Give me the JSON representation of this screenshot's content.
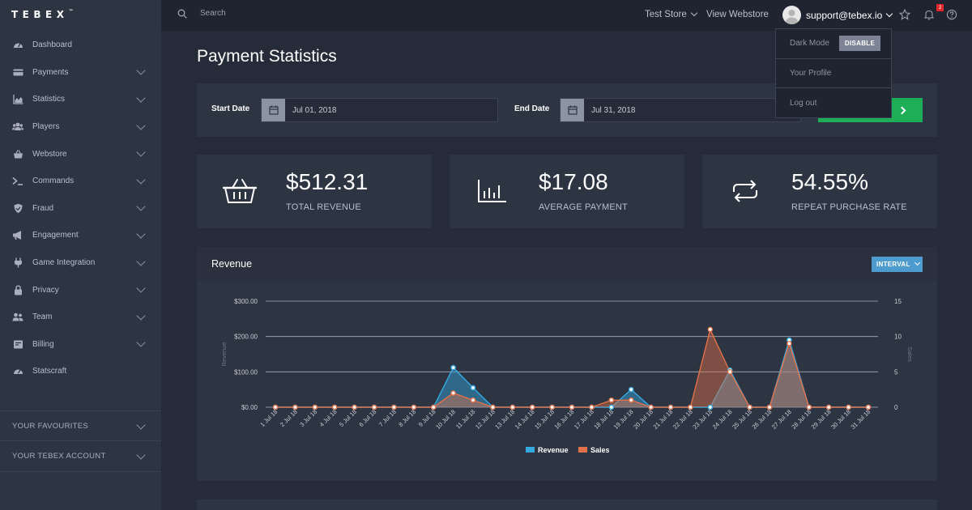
{
  "app": {
    "logo": "TEBEX",
    "logo_tm": "™"
  },
  "sidebar": {
    "items": [
      {
        "label": "Dashboard",
        "icon": "gauge-icon",
        "chevron": false
      },
      {
        "label": "Payments",
        "icon": "credit-card-icon",
        "chevron": true
      },
      {
        "label": "Statistics",
        "icon": "area-chart-icon",
        "chevron": true
      },
      {
        "label": "Players",
        "icon": "users-icon",
        "chevron": true
      },
      {
        "label": "Webstore",
        "icon": "basket-icon",
        "chevron": true
      },
      {
        "label": "Commands",
        "icon": "terminal-icon",
        "chevron": true
      },
      {
        "label": "Fraud",
        "icon": "shield-icon",
        "chevron": true
      },
      {
        "label": "Engagement",
        "icon": "megaphone-icon",
        "chevron": true
      },
      {
        "label": "Game Integration",
        "icon": "plug-icon",
        "chevron": true
      },
      {
        "label": "Privacy",
        "icon": "lock-icon",
        "chevron": true
      },
      {
        "label": "Team",
        "icon": "team-icon",
        "chevron": true
      },
      {
        "label": "Billing",
        "icon": "billing-icon",
        "chevron": true
      },
      {
        "label": "Statscraft",
        "icon": "gauge-icon",
        "chevron": false
      }
    ],
    "sections": [
      "YOUR FAVOURITES",
      "YOUR TEBEX ACCOUNT"
    ]
  },
  "topbar": {
    "search_placeholder": "Search",
    "store": "Test Store",
    "view_webstore": "View Webstore",
    "account": "support@tebex.io",
    "notifications_count": "2"
  },
  "dropdown": {
    "dark_mode": "Dark Mode",
    "dark_mode_button": "DISABLE",
    "profile": "Your Profile",
    "logout": "Log out"
  },
  "page": {
    "title": "Payment Statistics"
  },
  "filter": {
    "start_label": "Start Date",
    "start_value": "Jul 01, 2018",
    "end_label": "End Date",
    "end_value": "Jul 31, 2018"
  },
  "cards": [
    {
      "value": "$512.31",
      "label": "TOTAL REVENUE",
      "icon": "basket-icon"
    },
    {
      "value": "$17.08",
      "label": "AVERAGE PAYMENT",
      "icon": "bar-chart-icon"
    },
    {
      "value": "54.55%",
      "label": "REPEAT PURCHASE RATE",
      "icon": "repeat-icon"
    }
  ],
  "chart_panel": {
    "title": "Revenue",
    "interval_button": "INTERVAL"
  },
  "colors": {
    "revenue": "#36a9e1",
    "sales": "#e0714a",
    "accent_green": "#1dae57",
    "interval_blue": "#4e9bd0"
  },
  "chart_data": {
    "type": "area",
    "x": [
      "1 Jul 18",
      "2 Jul 18",
      "3 Jul 18",
      "4 Jul 18",
      "5 Jul 18",
      "6 Jul 18",
      "7 Jul 18",
      "8 Jul 18",
      "9 Jul 18",
      "10 Jul 18",
      "11 Jul 18",
      "12 Jul 18",
      "13 Jul 18",
      "14 Jul 18",
      "15 Jul 18",
      "16 Jul 18",
      "17 Jul 18",
      "18 Jul 18",
      "19 Jul 18",
      "20 Jul 18",
      "21 Jul 18",
      "22 Jul 18",
      "23 Jul 18",
      "24 Jul 18",
      "25 Jul 18",
      "26 Jul 18",
      "27 Jul 18",
      "28 Jul 18",
      "29 Jul 18",
      "30 Jul 18",
      "31 Jul 18"
    ],
    "series": [
      {
        "name": "Revenue",
        "axis": "left",
        "values": [
          0,
          0,
          0,
          0,
          0,
          0,
          0,
          0,
          0,
          112,
          55,
          0,
          0,
          0,
          0,
          0,
          0,
          0,
          50,
          0,
          0,
          0,
          0,
          105,
          0,
          0,
          190,
          0,
          0,
          0,
          0
        ]
      },
      {
        "name": "Sales",
        "axis": "right",
        "values": [
          0,
          0,
          0,
          0,
          0,
          0,
          0,
          0,
          0,
          2,
          1,
          0,
          0,
          0,
          0,
          0,
          0,
          1,
          1,
          0,
          0,
          0,
          11,
          5,
          0,
          0,
          9,
          0,
          0,
          0,
          0
        ]
      }
    ],
    "ylabel": "Revenue",
    "y2label": "Sales",
    "ylim": [
      0,
      300
    ],
    "y2lim": [
      0,
      15
    ],
    "yticks": [
      "$0.00",
      "$100.00",
      "$200.00",
      "$300.00"
    ],
    "y2ticks": [
      "0",
      "5",
      "10",
      "15"
    ],
    "grid": true,
    "legend": "bottom-center"
  }
}
